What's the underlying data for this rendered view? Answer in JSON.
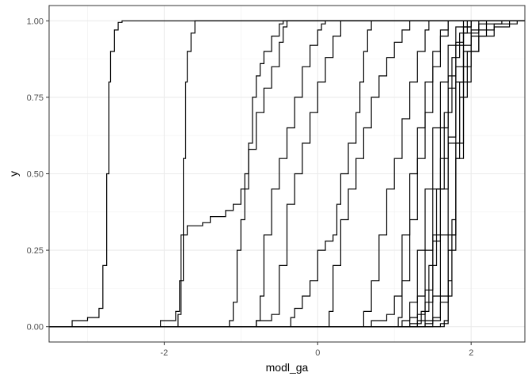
{
  "chart_data": {
    "type": "line",
    "subtype": "ecdf",
    "xlabel": "modl_ga",
    "ylabel": "y",
    "xlim": [
      -3.5,
      2.7
    ],
    "ylim": [
      -0.05,
      1.05
    ],
    "x_ticks": [
      -2,
      0,
      2
    ],
    "x_tick_labels": [
      "-2",
      "0",
      "2"
    ],
    "y_ticks": [
      0,
      0.25,
      0.5,
      0.75,
      1.0
    ],
    "y_tick_labels": [
      "0.00",
      "0.25",
      "0.50",
      "0.75",
      "1.00"
    ],
    "grid": true,
    "legend": "none",
    "line_color": "#000000",
    "series": [
      {
        "values": [
          [
            -3.5,
            0
          ],
          [
            -3.25,
            0
          ],
          [
            -3.2,
            0.02
          ],
          [
            -3.0,
            0.03
          ],
          [
            -2.85,
            0.06
          ],
          [
            -2.8,
            0.2
          ],
          [
            -2.75,
            0.5
          ],
          [
            -2.72,
            0.8
          ],
          [
            -2.7,
            0.9
          ],
          [
            -2.65,
            0.97
          ],
          [
            -2.6,
            0.995
          ],
          [
            -2.55,
            1
          ],
          [
            2.7,
            1
          ]
        ]
      },
      {
        "values": [
          [
            -3.5,
            0
          ],
          [
            -2.1,
            0
          ],
          [
            -2.05,
            0.02
          ],
          [
            -1.85,
            0.05
          ],
          [
            -1.8,
            0.15
          ],
          [
            -1.75,
            0.3
          ],
          [
            -1.7,
            0.33
          ],
          [
            -1.5,
            0.34
          ],
          [
            -1.4,
            0.36
          ],
          [
            -1.2,
            0.38
          ],
          [
            -1.1,
            0.4
          ],
          [
            -1.0,
            0.45
          ],
          [
            -0.95,
            0.5
          ],
          [
            -0.9,
            0.6
          ],
          [
            -0.85,
            0.75
          ],
          [
            -0.8,
            0.82
          ],
          [
            -0.75,
            0.86
          ],
          [
            -0.7,
            0.9
          ],
          [
            -0.6,
            0.95
          ],
          [
            -0.5,
            0.99
          ],
          [
            -0.45,
            1
          ],
          [
            2.7,
            1
          ]
        ]
      },
      {
        "values": [
          [
            -3.5,
            0
          ],
          [
            -1.85,
            0
          ],
          [
            -1.82,
            0.04
          ],
          [
            -1.78,
            0.3
          ],
          [
            -1.75,
            0.55
          ],
          [
            -1.72,
            0.8
          ],
          [
            -1.7,
            0.9
          ],
          [
            -1.65,
            0.96
          ],
          [
            -1.6,
            1
          ],
          [
            2.7,
            1
          ]
        ]
      },
      {
        "values": [
          [
            -3.5,
            0
          ],
          [
            -1.2,
            0
          ],
          [
            -1.15,
            0.02
          ],
          [
            -1.1,
            0.08
          ],
          [
            -1.05,
            0.25
          ],
          [
            -1.0,
            0.35
          ],
          [
            -0.95,
            0.45
          ],
          [
            -0.9,
            0.58
          ],
          [
            -0.8,
            0.7
          ],
          [
            -0.7,
            0.78
          ],
          [
            -0.6,
            0.85
          ],
          [
            -0.5,
            0.93
          ],
          [
            -0.45,
            0.98
          ],
          [
            -0.4,
            1
          ],
          [
            2.7,
            1
          ]
        ]
      },
      {
        "values": [
          [
            -3.5,
            0
          ],
          [
            -0.85,
            0
          ],
          [
            -0.8,
            0.02
          ],
          [
            -0.75,
            0.1
          ],
          [
            -0.7,
            0.3
          ],
          [
            -0.6,
            0.45
          ],
          [
            -0.5,
            0.55
          ],
          [
            -0.4,
            0.65
          ],
          [
            -0.3,
            0.75
          ],
          [
            -0.2,
            0.85
          ],
          [
            -0.1,
            0.92
          ],
          [
            0.0,
            0.97
          ],
          [
            0.05,
            0.99
          ],
          [
            0.1,
            1
          ],
          [
            2.7,
            1
          ]
        ]
      },
      {
        "values": [
          [
            -3.5,
            0
          ],
          [
            -0.9,
            0
          ],
          [
            -0.8,
            0.02
          ],
          [
            -0.6,
            0.04
          ],
          [
            -0.5,
            0.2
          ],
          [
            -0.4,
            0.4
          ],
          [
            -0.3,
            0.5
          ],
          [
            -0.2,
            0.6
          ],
          [
            -0.1,
            0.7
          ],
          [
            0.0,
            0.8
          ],
          [
            0.1,
            0.88
          ],
          [
            0.2,
            0.95
          ],
          [
            0.3,
            1
          ],
          [
            2.7,
            1
          ]
        ]
      },
      {
        "values": [
          [
            -3.5,
            0
          ],
          [
            -0.4,
            0
          ],
          [
            -0.35,
            0.03
          ],
          [
            -0.3,
            0.06
          ],
          [
            -0.2,
            0.1
          ],
          [
            -0.1,
            0.15
          ],
          [
            0.0,
            0.25
          ],
          [
            0.1,
            0.28
          ],
          [
            0.2,
            0.3
          ],
          [
            0.25,
            0.4
          ],
          [
            0.3,
            0.5
          ],
          [
            0.4,
            0.6
          ],
          [
            0.5,
            0.7
          ],
          [
            0.55,
            0.8
          ],
          [
            0.6,
            0.9
          ],
          [
            0.65,
            0.97
          ],
          [
            0.7,
            1
          ],
          [
            2.7,
            1
          ]
        ]
      },
      {
        "values": [
          [
            -3.5,
            0
          ],
          [
            0.1,
            0
          ],
          [
            0.15,
            0.05
          ],
          [
            0.2,
            0.2
          ],
          [
            0.3,
            0.35
          ],
          [
            0.4,
            0.45
          ],
          [
            0.5,
            0.55
          ],
          [
            0.6,
            0.65
          ],
          [
            0.7,
            0.75
          ],
          [
            0.8,
            0.82
          ],
          [
            0.9,
            0.88
          ],
          [
            1.0,
            0.93
          ],
          [
            1.1,
            0.97
          ],
          [
            1.2,
            1
          ],
          [
            2.7,
            1
          ]
        ]
      },
      {
        "values": [
          [
            -3.5,
            0
          ],
          [
            0.5,
            0
          ],
          [
            0.6,
            0.05
          ],
          [
            0.7,
            0.15
          ],
          [
            0.8,
            0.3
          ],
          [
            0.9,
            0.45
          ],
          [
            1.0,
            0.55
          ],
          [
            1.1,
            0.68
          ],
          [
            1.2,
            0.8
          ],
          [
            1.3,
            0.9
          ],
          [
            1.4,
            0.97
          ],
          [
            1.45,
            1
          ],
          [
            2.7,
            1
          ]
        ]
      },
      {
        "values": [
          [
            -3.5,
            0
          ],
          [
            0.6,
            0
          ],
          [
            0.7,
            0.02
          ],
          [
            0.9,
            0.04
          ],
          [
            1.0,
            0.1
          ],
          [
            1.1,
            0.3
          ],
          [
            1.2,
            0.5
          ],
          [
            1.3,
            0.65
          ],
          [
            1.4,
            0.8
          ],
          [
            1.5,
            0.9
          ],
          [
            1.6,
            0.97
          ],
          [
            1.7,
            1
          ],
          [
            2.7,
            1
          ]
        ]
      },
      {
        "values": [
          [
            -3.5,
            0
          ],
          [
            1.0,
            0
          ],
          [
            1.05,
            0.03
          ],
          [
            1.1,
            0.15
          ],
          [
            1.2,
            0.35
          ],
          [
            1.3,
            0.55
          ],
          [
            1.4,
            0.7
          ],
          [
            1.5,
            0.85
          ],
          [
            1.6,
            0.95
          ],
          [
            1.7,
            1
          ],
          [
            2.7,
            1
          ]
        ]
      },
      {
        "values": [
          [
            -3.5,
            0
          ],
          [
            1.0,
            0
          ],
          [
            1.1,
            0.02
          ],
          [
            1.2,
            0.08
          ],
          [
            1.3,
            0.25
          ],
          [
            1.4,
            0.45
          ],
          [
            1.5,
            0.65
          ],
          [
            1.6,
            0.8
          ],
          [
            1.7,
            0.92
          ],
          [
            1.8,
            0.98
          ],
          [
            1.9,
            1
          ],
          [
            2.7,
            1
          ]
        ]
      },
      {
        "values": [
          [
            -3.5,
            0
          ],
          [
            1.1,
            0
          ],
          [
            1.2,
            0.03
          ],
          [
            1.3,
            0.1
          ],
          [
            1.4,
            0.25
          ],
          [
            1.5,
            0.45
          ],
          [
            1.6,
            0.65
          ],
          [
            1.7,
            0.82
          ],
          [
            1.8,
            0.93
          ],
          [
            1.9,
            0.98
          ],
          [
            2.0,
            1
          ],
          [
            2.7,
            1
          ]
        ]
      },
      {
        "values": [
          [
            -3.5,
            0
          ],
          [
            1.1,
            0
          ],
          [
            1.2,
            0.01
          ],
          [
            1.35,
            0.05
          ],
          [
            1.45,
            0.2
          ],
          [
            1.55,
            0.45
          ],
          [
            1.65,
            0.7
          ],
          [
            1.75,
            0.88
          ],
          [
            1.85,
            0.96
          ],
          [
            1.95,
            1
          ],
          [
            2.7,
            1
          ]
        ]
      },
      {
        "values": [
          [
            -3.5,
            0
          ],
          [
            1.2,
            0
          ],
          [
            1.3,
            0.02
          ],
          [
            1.4,
            0.08
          ],
          [
            1.5,
            0.3
          ],
          [
            1.6,
            0.55
          ],
          [
            1.7,
            0.78
          ],
          [
            1.8,
            0.92
          ],
          [
            1.9,
            0.98
          ],
          [
            2.0,
            1
          ],
          [
            2.7,
            1
          ]
        ]
      },
      {
        "values": [
          [
            -3.5,
            0
          ],
          [
            1.3,
            0
          ],
          [
            1.4,
            0.02
          ],
          [
            1.5,
            0.1
          ],
          [
            1.6,
            0.3
          ],
          [
            1.7,
            0.6
          ],
          [
            1.8,
            0.85
          ],
          [
            1.9,
            0.96
          ],
          [
            2.0,
            1
          ],
          [
            2.7,
            1
          ]
        ]
      },
      {
        "values": [
          [
            -3.5,
            0
          ],
          [
            1.5,
            0
          ],
          [
            1.6,
            0.01
          ],
          [
            1.7,
            0.15
          ],
          [
            1.75,
            0.35
          ],
          [
            1.8,
            0.6
          ],
          [
            1.85,
            0.8
          ],
          [
            1.9,
            0.9
          ],
          [
            2.0,
            0.96
          ],
          [
            2.1,
            0.99
          ],
          [
            2.2,
            1
          ],
          [
            2.7,
            1
          ]
        ]
      },
      {
        "values": [
          [
            -3.5,
            0
          ],
          [
            1.3,
            0
          ],
          [
            1.4,
            0.01
          ],
          [
            1.5,
            0.03
          ],
          [
            1.6,
            0.08
          ],
          [
            1.7,
            0.25
          ],
          [
            1.8,
            0.55
          ],
          [
            1.9,
            0.85
          ],
          [
            2.0,
            0.95
          ],
          [
            2.2,
            0.99
          ],
          [
            2.4,
            1
          ],
          [
            2.7,
            1
          ]
        ]
      },
      {
        "values": [
          [
            -3.5,
            0
          ],
          [
            1.6,
            0
          ],
          [
            1.65,
            0.02
          ],
          [
            1.7,
            0.1
          ],
          [
            1.75,
            0.3
          ],
          [
            1.8,
            0.55
          ],
          [
            1.85,
            0.75
          ],
          [
            1.95,
            0.9
          ],
          [
            2.1,
            0.97
          ],
          [
            2.3,
            0.99
          ],
          [
            2.6,
            1
          ],
          [
            2.7,
            1
          ]
        ]
      },
      {
        "values": [
          [
            -3.5,
            0
          ],
          [
            1.4,
            0
          ],
          [
            1.5,
            0.02
          ],
          [
            1.6,
            0.1
          ],
          [
            1.7,
            0.3
          ],
          [
            1.8,
            0.6
          ],
          [
            1.9,
            0.8
          ],
          [
            2.0,
            0.9
          ],
          [
            2.1,
            0.95
          ],
          [
            2.3,
            0.98
          ],
          [
            2.5,
            1
          ],
          [
            2.7,
            1
          ]
        ]
      },
      {
        "values": [
          [
            -3.5,
            0
          ],
          [
            1.2,
            0
          ],
          [
            1.3,
            0.04
          ],
          [
            1.4,
            0.12
          ],
          [
            1.5,
            0.28
          ],
          [
            1.6,
            0.45
          ],
          [
            1.7,
            0.62
          ],
          [
            1.8,
            0.8
          ],
          [
            1.9,
            0.92
          ],
          [
            2.0,
            0.97
          ],
          [
            2.1,
            1
          ],
          [
            2.7,
            1
          ]
        ]
      }
    ]
  }
}
